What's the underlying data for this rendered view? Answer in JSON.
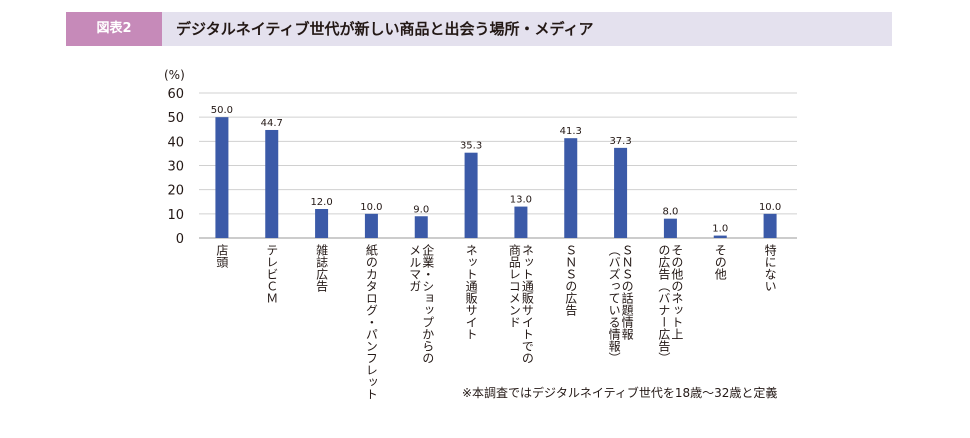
{
  "header": {
    "figure_label": "図表2",
    "title": "デジタルネイティブ世代が新しい商品と出会う場所・メディア"
  },
  "footnote": "※本調査ではデジタルネイティブ世代を18歳～32歳と定義",
  "colors": {
    "bar": "#3b5aa8",
    "header_bg": "#e4e1ee",
    "label_bg": "#c68ab9"
  },
  "chart_data": {
    "type": "bar",
    "unit_label": "(%)",
    "ylim": [
      0,
      60
    ],
    "yticks": [
      0,
      10,
      20,
      30,
      40,
      50,
      60
    ],
    "grid": true,
    "legend": "none",
    "categories": [
      [
        "店頭"
      ],
      [
        "テレビＣＭ"
      ],
      [
        "雑誌広告"
      ],
      [
        "紙のカタログ・パンフレット"
      ],
      [
        "企業・ショップからの",
        "メルマガ"
      ],
      [
        "ネット通販サイト"
      ],
      [
        "ネット通販サイトでの",
        "商品レコメンド"
      ],
      [
        "ＳＮＳの広告"
      ],
      [
        "ＳＮＳの話題情報",
        "（バズっている情報）"
      ],
      [
        "その他のネット上",
        "の広告（バナー広告）"
      ],
      [
        "その他"
      ],
      [
        "特にない"
      ]
    ],
    "values": [
      50.0,
      44.7,
      12.0,
      10.0,
      9.0,
      35.3,
      13.0,
      41.3,
      37.3,
      8.0,
      1.0,
      10.0
    ],
    "value_labels": [
      "50.0",
      "44.7",
      "12.0",
      "10.0",
      "9.0",
      "35.3",
      "13.0",
      "41.3",
      "37.3",
      "8.0",
      "1.0",
      "10.0"
    ]
  }
}
